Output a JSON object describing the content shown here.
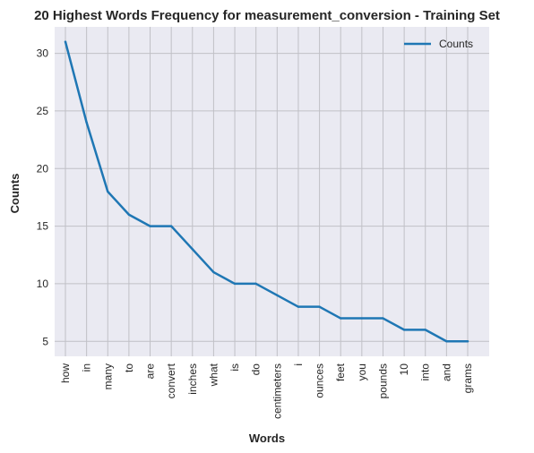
{
  "chart_data": {
    "type": "line",
    "title": "20 Highest Words Frequency for measurement_conversion - Training Set",
    "xlabel": "Words",
    "ylabel": "Counts",
    "categories": [
      "how",
      "in",
      "many",
      "to",
      "are",
      "convert",
      "inches",
      "what",
      "is",
      "do",
      "centimeters",
      "i",
      "ounces",
      "feet",
      "you",
      "pounds",
      "10",
      "into",
      "and",
      "grams"
    ],
    "series": [
      {
        "name": "Counts",
        "values": [
          31,
          24,
          18,
          16,
          15,
          15,
          13,
          11,
          10,
          10,
          9,
          8,
          8,
          7,
          7,
          7,
          6,
          6,
          5,
          5
        ]
      }
    ],
    "ylim": [
      3.7,
      32.3
    ],
    "yticks": [
      5,
      10,
      15,
      20,
      25,
      30
    ],
    "grid": true,
    "legend_position": "top-right",
    "colors": {
      "line": "#1f77b4",
      "plot_bg": "#eaeaf2",
      "grid": "#c0c0c6",
      "text": "#262626"
    }
  }
}
